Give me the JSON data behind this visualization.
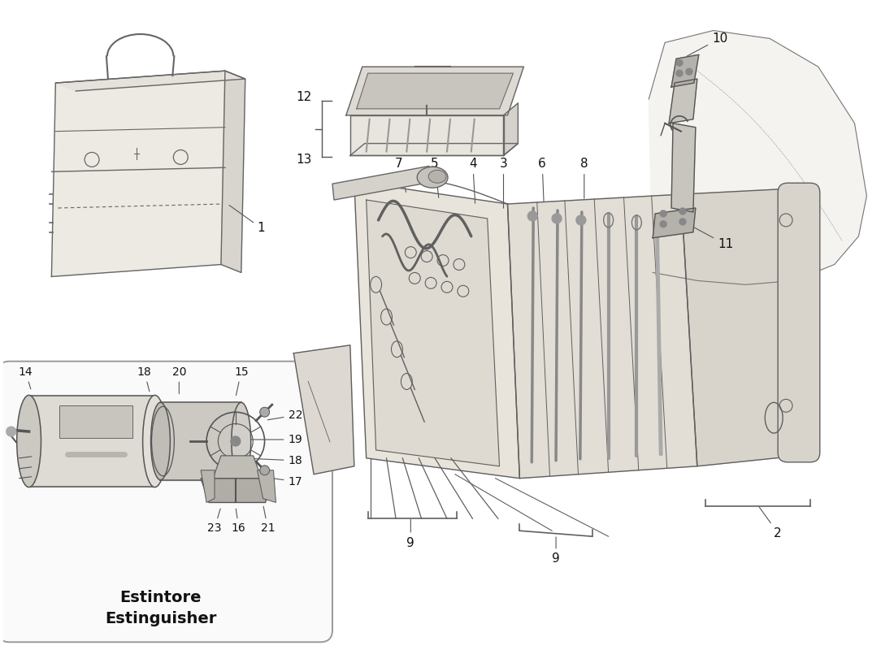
{
  "background_color": "#ffffff",
  "line_color": "#555555",
  "label_fontsize": 11,
  "estintore_line1": "Estintore",
  "estintore_line2": "Estinguisher"
}
